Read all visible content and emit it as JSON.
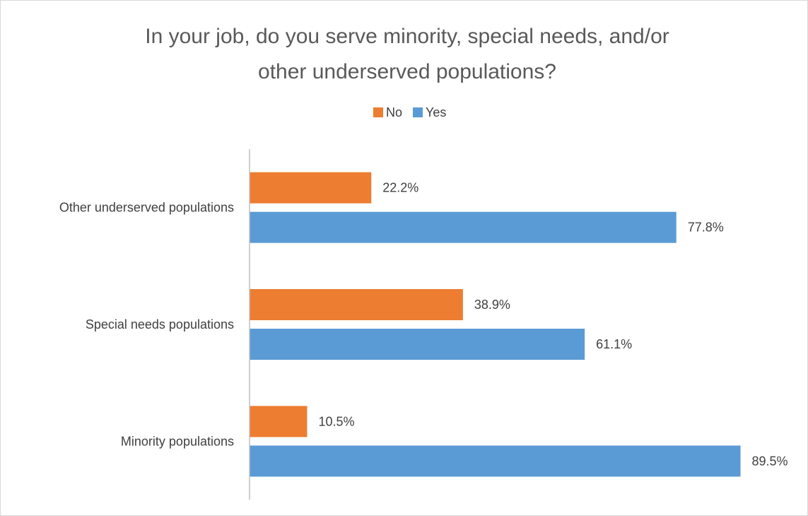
{
  "chart_data": {
    "type": "bar",
    "orientation": "horizontal",
    "title": "In your job, do you serve minority, special needs, and/or other underserved populations?",
    "title_lines": [
      "In your job, do you serve minority, special needs, and/or",
      "other underserved populations?"
    ],
    "categories": [
      "Other underserved populations",
      "Special needs populations",
      "Minority populations"
    ],
    "series": [
      {
        "name": "No",
        "color": "#ED7D31",
        "values": [
          22.2,
          38.9,
          10.5
        ],
        "labels": [
          "22.2%",
          "38.9%",
          "10.5%"
        ]
      },
      {
        "name": "Yes",
        "color": "#5B9BD5",
        "values": [
          77.8,
          61.1,
          89.5
        ],
        "labels": [
          "77.8%",
          "61.1%",
          "89.5%"
        ]
      }
    ],
    "legend_order": [
      "No",
      "Yes"
    ],
    "legend_position": "top",
    "xlim": [
      0,
      100
    ],
    "grid": false,
    "axis_line_color": "#BFBFBF"
  }
}
